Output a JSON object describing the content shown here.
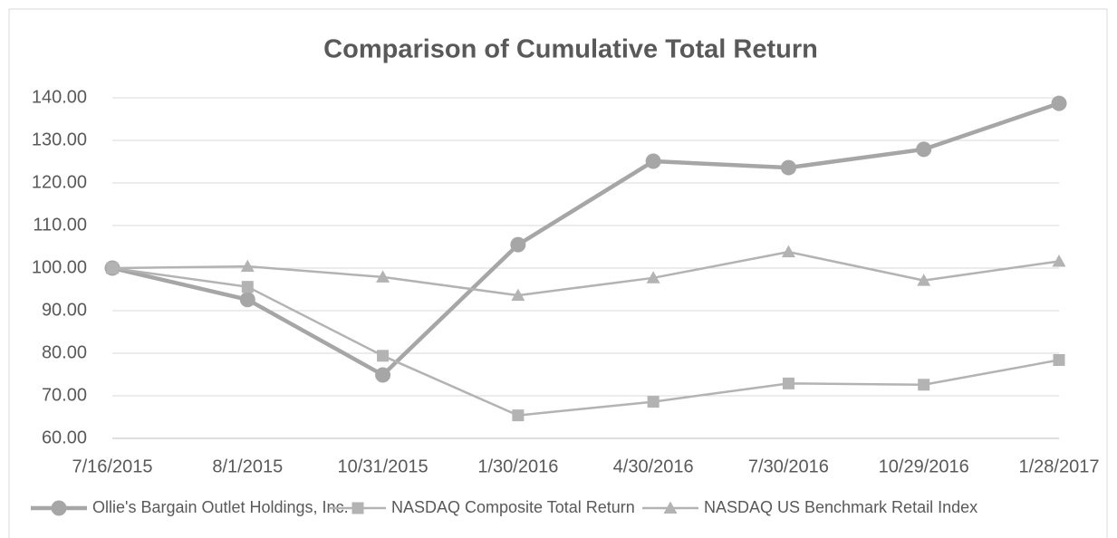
{
  "chart_data": {
    "type": "line",
    "title": "Comparison of Cumulative Total Return",
    "categories": [
      "7/16/2015",
      "8/1/2015",
      "10/31/2015",
      "1/30/2016",
      "4/30/2016",
      "7/30/2016",
      "10/29/2016",
      "1/28/2017"
    ],
    "series": [
      {
        "name": "Ollie's Bargain Outlet Holdings, Inc.",
        "color": "#a6a6a6",
        "marker": "circle",
        "values": [
          100,
          92.6,
          74.9,
          105.5,
          125.1,
          123.6,
          127.9,
          138.7
        ]
      },
      {
        "name": "NASDAQ Composite Total Return",
        "color": "#b3b3b3",
        "marker": "square",
        "values": [
          100,
          95.6,
          79.4,
          65.4,
          68.6,
          72.9,
          72.6,
          78.4
        ]
      },
      {
        "name": "NASDAQ US Benchmark Retail Index",
        "color": "#b3b3b3",
        "marker": "triangle",
        "values": [
          100,
          100.4,
          97.9,
          93.6,
          97.7,
          103.8,
          97.1,
          101.6
        ]
      }
    ],
    "ylim": [
      60,
      140
    ],
    "yticks": [
      {
        "value": 60,
        "label": "60.00"
      },
      {
        "value": 70,
        "label": "70.00"
      },
      {
        "value": 80,
        "label": "80.00"
      },
      {
        "value": 90,
        "label": "90.00"
      },
      {
        "value": 100,
        "label": "100.00"
      },
      {
        "value": 110,
        "label": "110.00"
      },
      {
        "value": 120,
        "label": "120.00"
      },
      {
        "value": 130,
        "label": "130.00"
      },
      {
        "value": 140,
        "label": "140.00"
      }
    ],
    "grid": true,
    "legend": "bottom"
  }
}
